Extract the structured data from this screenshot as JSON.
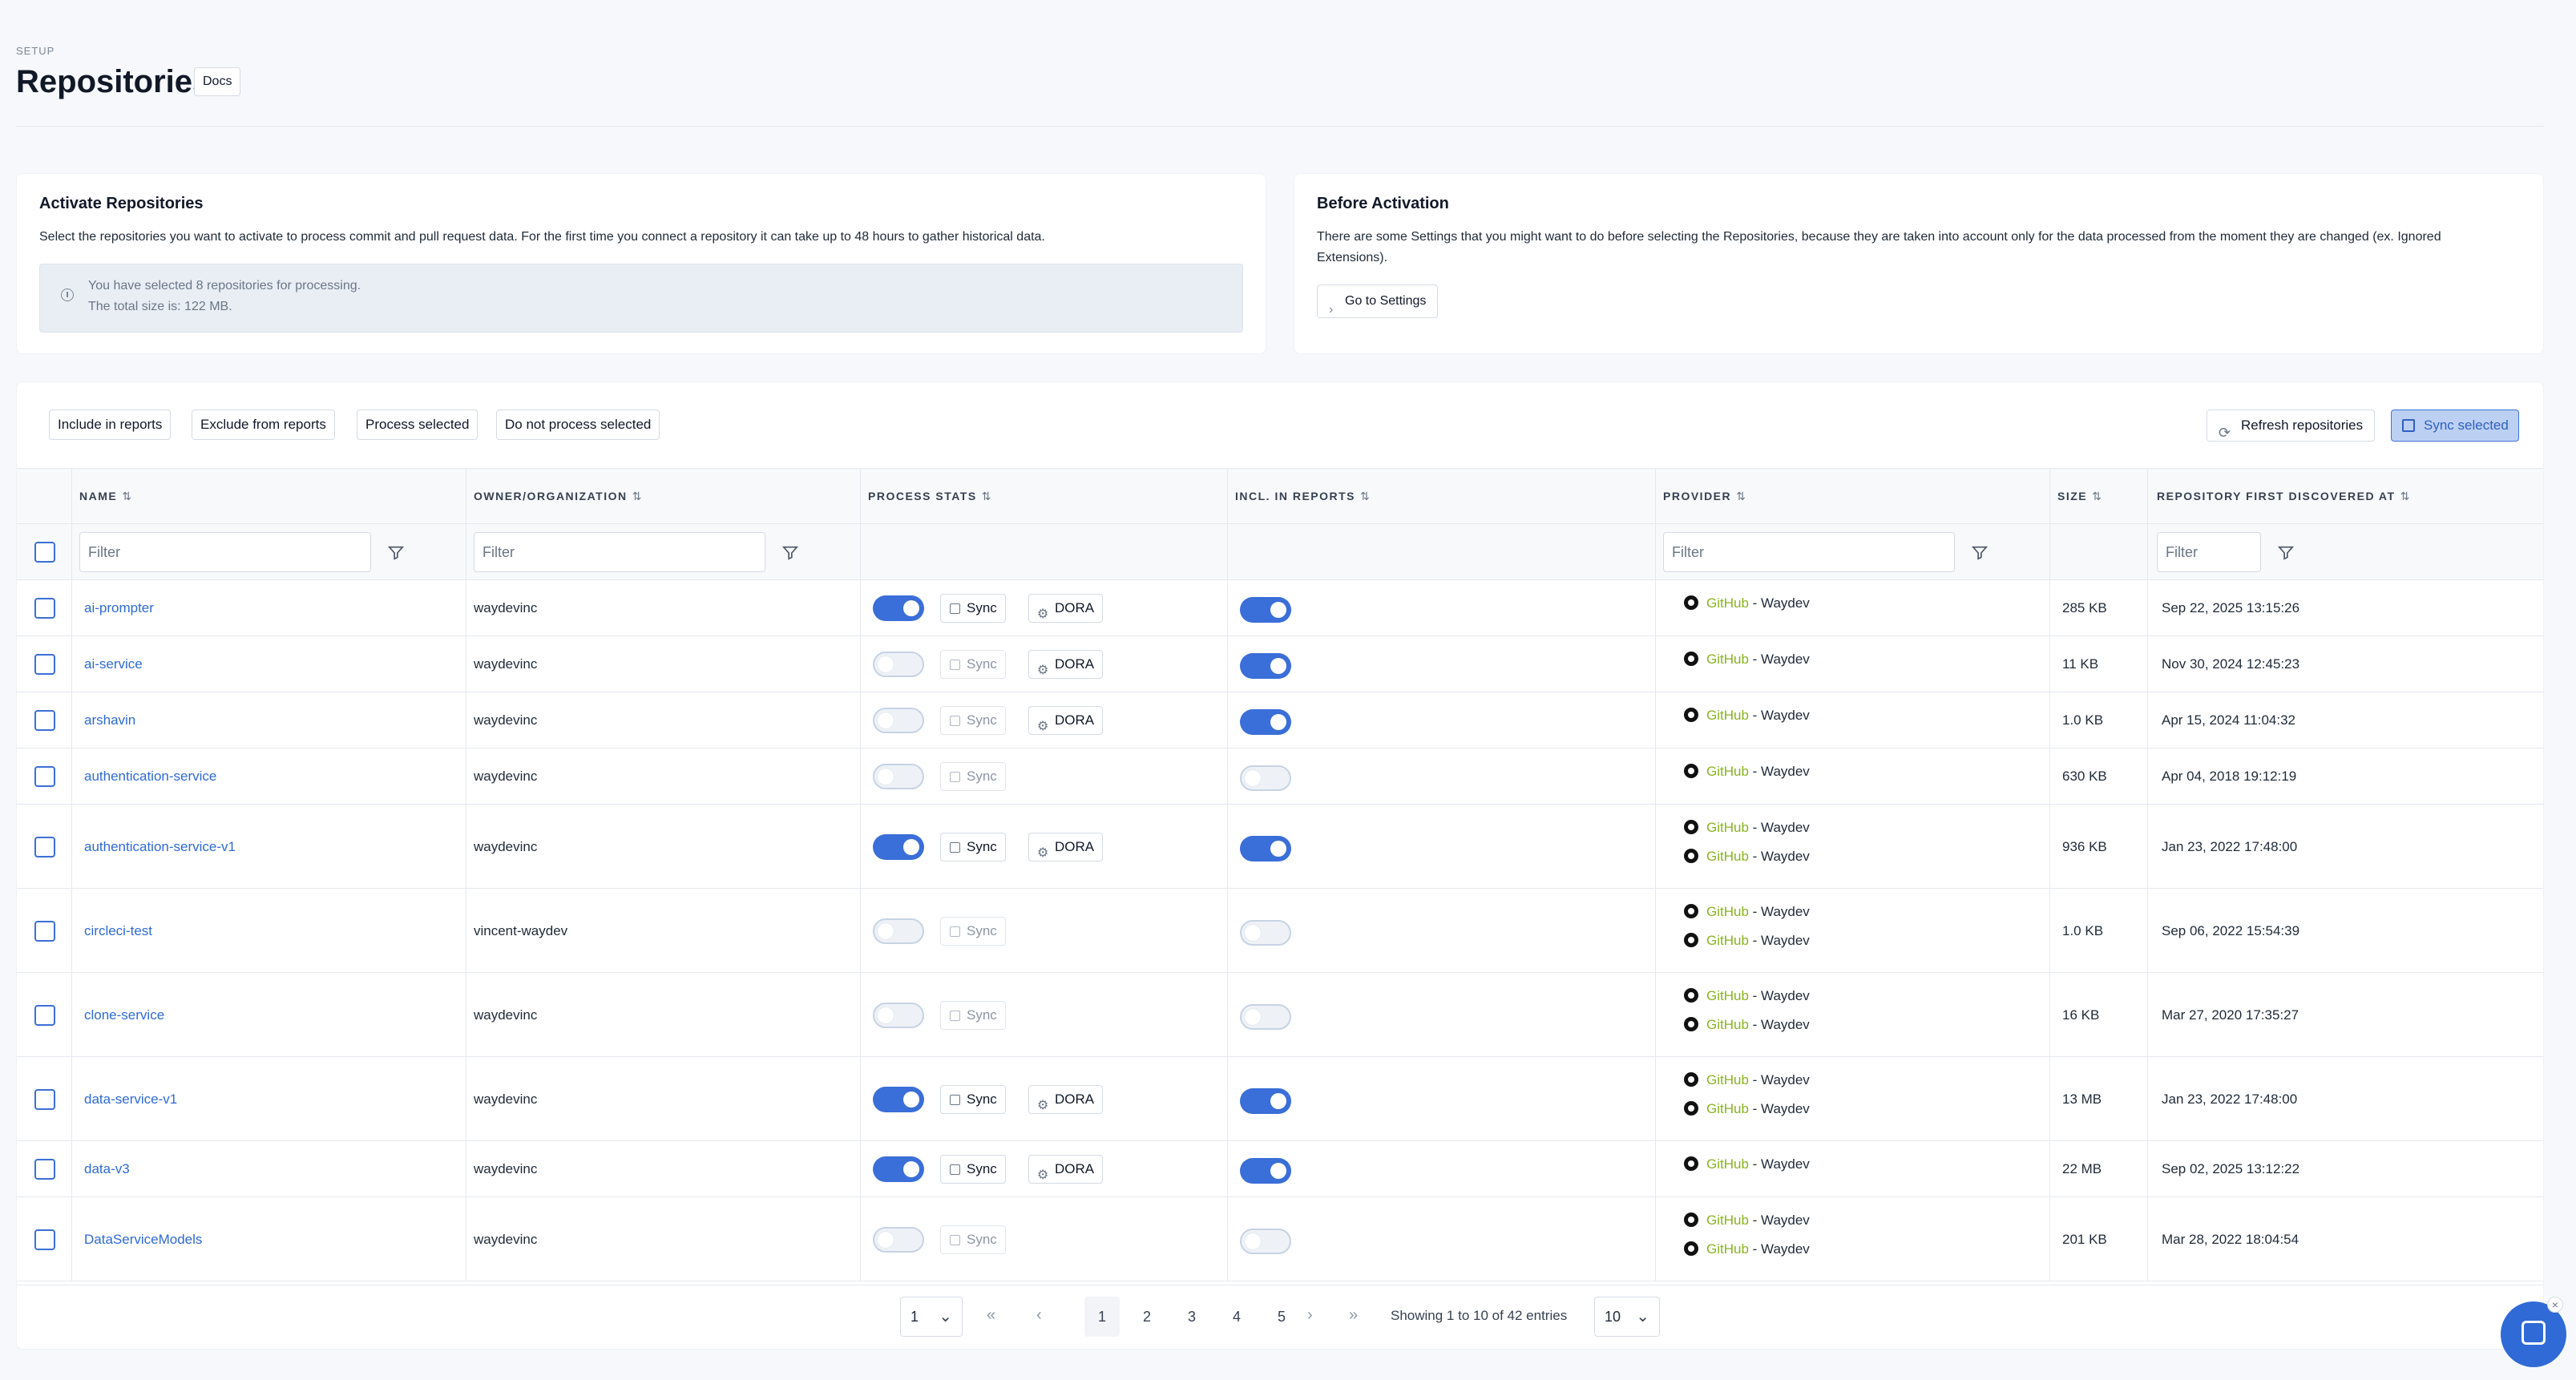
{
  "header": {
    "section": "SETUP",
    "title": "Repositories",
    "docs_label": "Docs"
  },
  "activate_card": {
    "title": "Activate Repositories",
    "description": "Select the repositories you want to activate to process commit and pull request data. For the first time you connect a repository it can take up to 48 hours to gather historical data.",
    "info_line1": "You have selected 8 repositories for processing.",
    "info_line2": "The total size is: 122 MB."
  },
  "before_card": {
    "title": "Before Activation",
    "description": "There are some Settings that you might want to do before selecting the Repositories, because they are taken into account only for the data processed from the moment they are changed (ex. Ignored Extensions).",
    "button": "Go to Settings"
  },
  "toolbar": {
    "include": "Include in reports",
    "exclude": "Exclude from reports",
    "process": "Process selected",
    "no_process": "Do not process selected",
    "refresh": "Refresh repositories",
    "sync_selected": "Sync selected"
  },
  "columns": {
    "name": "NAME",
    "owner": "OWNER/ORGANIZATION",
    "process": "PROCESS STATS",
    "reports": "INCL. IN REPORTS",
    "provider": "PROVIDER",
    "size": "SIZE",
    "discovered": "REPOSITORY FIRST DISCOVERED AT",
    "sort_asc": "⇅",
    "sort_icon": "⇅"
  },
  "filter_placeholder": "Filter",
  "labels": {
    "sync": "Sync",
    "dora": "DORA",
    "provider_name": "GitHub",
    "provider_sep": " - Waydev"
  },
  "rows": [
    {
      "name": "ai-prompter",
      "owner": "waydevinc",
      "process": true,
      "dora": true,
      "reports": true,
      "providers": 1,
      "size": "285 KB",
      "date": "Sep 22, 2025 13:15:26"
    },
    {
      "name": "ai-service",
      "owner": "waydevinc",
      "process": false,
      "dora": true,
      "reports": true,
      "providers": 1,
      "size": "11 KB",
      "date": "Nov 30, 2024 12:45:23"
    },
    {
      "name": "arshavin",
      "owner": "waydevinc",
      "process": false,
      "dora": true,
      "reports": true,
      "providers": 1,
      "size": "1.0 KB",
      "date": "Apr 15, 2024 11:04:32"
    },
    {
      "name": "authentication-service",
      "owner": "waydevinc",
      "process": false,
      "dora": false,
      "reports": false,
      "providers": 1,
      "size": "630 KB",
      "date": "Apr 04, 2018 19:12:19"
    },
    {
      "name": "authentication-service-v1",
      "owner": "waydevinc",
      "process": true,
      "dora": true,
      "reports": true,
      "providers": 2,
      "size": "936 KB",
      "date": "Jan 23, 2022 17:48:00"
    },
    {
      "name": "circleci-test",
      "owner": "vincent-waydev",
      "process": false,
      "dora": false,
      "reports": false,
      "providers": 2,
      "size": "1.0 KB",
      "date": "Sep 06, 2022 15:54:39"
    },
    {
      "name": "clone-service",
      "owner": "waydevinc",
      "process": false,
      "dora": false,
      "reports": false,
      "providers": 2,
      "size": "16 KB",
      "date": "Mar 27, 2020 17:35:27"
    },
    {
      "name": "data-service-v1",
      "owner": "waydevinc",
      "process": true,
      "dora": true,
      "reports": true,
      "providers": 2,
      "size": "13 MB",
      "date": "Jan 23, 2022 17:48:00"
    },
    {
      "name": "data-v3",
      "owner": "waydevinc",
      "process": true,
      "dora": true,
      "reports": true,
      "providers": 1,
      "size": "22 MB",
      "date": "Sep 02, 2025 13:12:22"
    },
    {
      "name": "DataServiceModels",
      "owner": "waydevinc",
      "process": false,
      "dora": false,
      "reports": false,
      "providers": 2,
      "size": "201 KB",
      "date": "Mar 28, 2022 18:04:54"
    }
  ],
  "pagination": {
    "page_select": "1",
    "pages": [
      "1",
      "2",
      "3",
      "4",
      "5"
    ],
    "first": "«",
    "prev": "‹",
    "next": "›",
    "last": "»",
    "info": "Showing 1 to 10 of 42 entries",
    "per_page": "10"
  },
  "colors": {
    "accent": "#3a6ed8",
    "link": "#2f6ad6",
    "provider": "#8ab31f"
  }
}
